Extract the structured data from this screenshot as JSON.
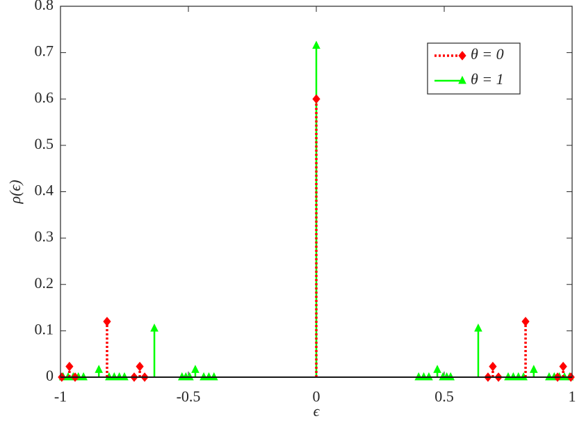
{
  "chart_data": {
    "type": "stem",
    "xlabel": "ϵ",
    "ylabel": "ρ(ϵ)",
    "xlim": [
      -1,
      1
    ],
    "ylim": [
      0,
      0.8
    ],
    "xticks": [
      -1,
      -0.5,
      0,
      0.5,
      1
    ],
    "yticks": [
      0,
      0.1,
      0.2,
      0.3,
      0.4,
      0.5,
      0.6,
      0.7,
      0.8
    ],
    "legend_position": "upper right",
    "series": [
      {
        "name": "θ = 0",
        "color": "#ff0000",
        "line_style": "dotted",
        "marker": "diamond",
        "x": [
          -0.995,
          -0.965,
          -0.943,
          -0.818,
          -0.712,
          -0.69,
          -0.671,
          0,
          0.671,
          0.69,
          0.712,
          0.818,
          0.943,
          0.965,
          0.995
        ],
        "values": [
          0,
          0.023,
          0,
          0.12,
          0,
          0.023,
          0,
          0.6,
          0,
          0.023,
          0,
          0.12,
          0,
          0.023,
          0
        ]
      },
      {
        "name": "θ = 1",
        "color": "#00ff00",
        "line_style": "solid",
        "marker": "triangle",
        "x": [
          -0.99,
          -0.97,
          -0.95,
          -0.93,
          -0.91,
          -0.85,
          -0.81,
          -0.79,
          -0.77,
          -0.75,
          -0.633,
          -0.525,
          -0.51,
          -0.495,
          -0.473,
          -0.44,
          -0.42,
          -0.4,
          0,
          0.4,
          0.42,
          0.44,
          0.473,
          0.495,
          0.51,
          0.525,
          0.633,
          0.75,
          0.77,
          0.79,
          0.81,
          0.85,
          0.91,
          0.93,
          0.95,
          0.97,
          0.99
        ],
        "values": [
          0,
          0,
          0,
          0,
          0,
          0.016,
          0,
          0,
          0,
          0,
          0.105,
          0,
          0,
          0,
          0.016,
          0,
          0,
          0,
          0.715,
          0,
          0,
          0,
          0.016,
          0,
          0,
          0,
          0.105,
          0,
          0,
          0,
          0,
          0.016,
          0,
          0,
          0,
          0,
          0
        ]
      }
    ]
  }
}
